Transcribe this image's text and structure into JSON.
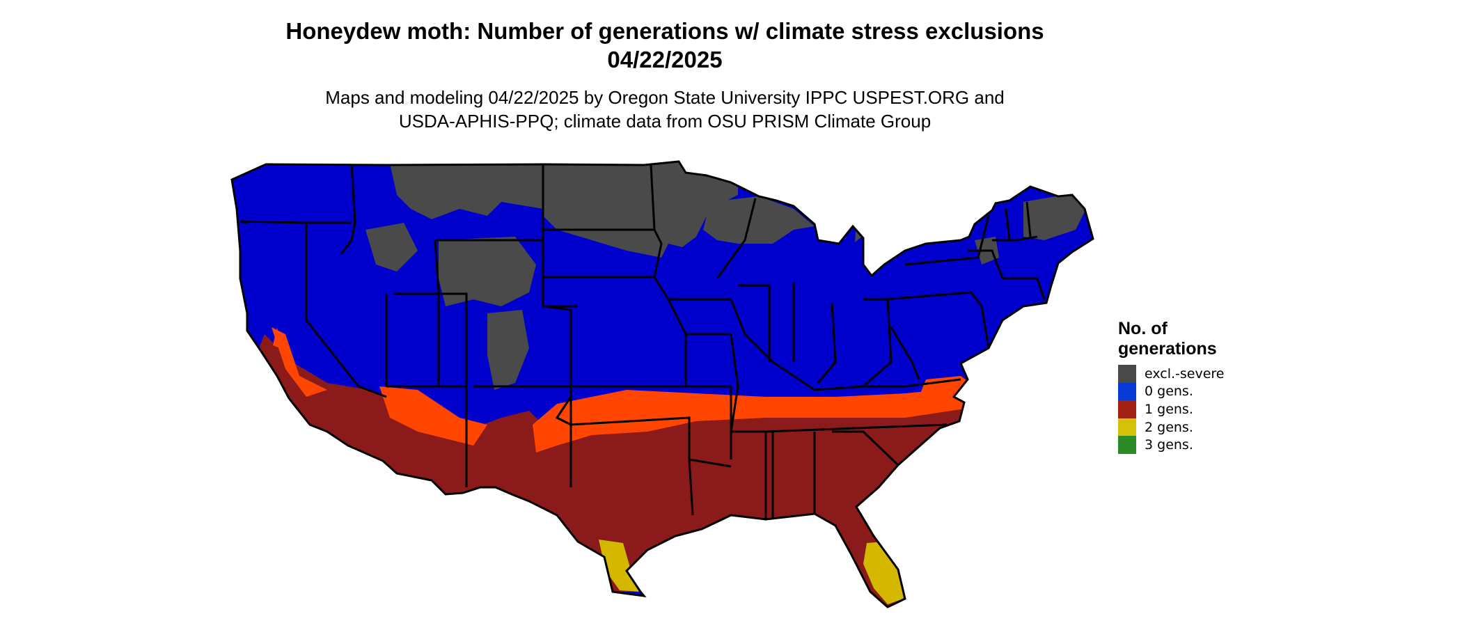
{
  "title_line1": "Honeydew moth: Number of generations w/ climate stress exclusions",
  "title_line2": "04/22/2025",
  "subtitle_line1": "Maps and modeling 04/22/2025 by Oregon State University IPPC USPEST.ORG and",
  "subtitle_line2": "USDA-APHIS-PPQ; climate data from OSU PRISM Climate Group",
  "legend": {
    "title_line1": "No. of",
    "title_line2": "generations",
    "items": [
      {
        "label": "excl.-severe",
        "color": "#4a4a4a"
      },
      {
        "label": "0 gens.",
        "color": "#0a3ad6"
      },
      {
        "label": "1 gens.",
        "color": "#a32015"
      },
      {
        "label": "2 gens.",
        "color": "#d4c20a"
      },
      {
        "label": "3 gens.",
        "color": "#2a8a23"
      }
    ]
  },
  "map_colors": {
    "excluded": "#4a4a4a",
    "zero": "#0000cc",
    "one": "#8b1a1a",
    "one_light": "#ff4500",
    "two": "#d4b800",
    "border": "#000000"
  }
}
